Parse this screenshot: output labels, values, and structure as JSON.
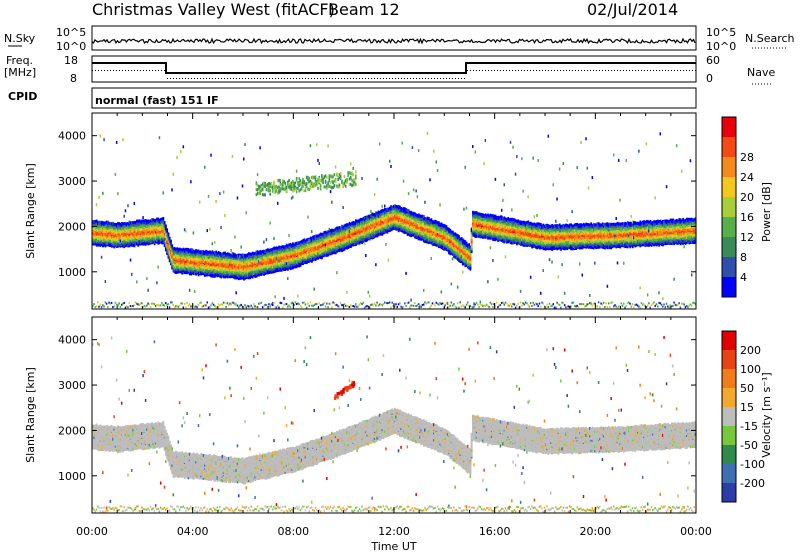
{
  "header": {
    "station": "Christmas Valley West (fitACF)",
    "beam": "Beam 12",
    "date": "02/Jul/2014"
  },
  "side_labels": {
    "nsky": "N.Sky",
    "nsearch": "N.Search",
    "freq_line1": "Freq.",
    "freq_line2": "[MHz]",
    "nave": "Nave",
    "cpid": "CPID",
    "cpid_value": "normal (fast) 151 IF"
  },
  "noise_panel": {
    "left_ticks": [
      "10^5",
      "10^0"
    ],
    "right_ticks": [
      "10^5",
      "10^0"
    ]
  },
  "freq_panel": {
    "left_ticks": [
      "18",
      "8"
    ],
    "right_ticks": [
      "60",
      "0"
    ]
  },
  "colors": {
    "power": [
      "#0000ff",
      "#2f4faf",
      "#3a8b5a",
      "#55b04c",
      "#a6cf3a",
      "#f2c81a",
      "#f48a1a",
      "#f24a10",
      "#e8000b"
    ],
    "velocity": [
      "#2b3ba8",
      "#3f6fb3",
      "#2f8a4c",
      "#78c83c",
      "#bdbdbd",
      "#f2a92c",
      "#f07c1a",
      "#e84412",
      "#e00000"
    ]
  },
  "chart_data": [
    {
      "type": "heatmap",
      "quantity": "power",
      "xlabel": "Time UT",
      "ylabel": "Slant Range [km]",
      "x_ticks": [
        "00:00",
        "04:00",
        "08:00",
        "12:00",
        "16:00",
        "20:00",
        "00:00"
      ],
      "y_ticks": [
        "1000",
        "2000",
        "3000",
        "4000"
      ],
      "xlim_hours": [
        0,
        24
      ],
      "ylim_km": [
        180,
        4500
      ],
      "colorbar": {
        "label": "Power [dB]",
        "ticks": [
          "4",
          "8",
          "12",
          "16",
          "20",
          "24",
          "28"
        ]
      },
      "main_echo_band_km": [
        {
          "hour": 0.0,
          "range": 1900
        },
        {
          "hour": 1.0,
          "range": 1850
        },
        {
          "hour": 2.8,
          "range": 1950
        },
        {
          "hour": 3.2,
          "range": 1300
        },
        {
          "hour": 6.0,
          "range": 1150
        },
        {
          "hour": 8.0,
          "range": 1400
        },
        {
          "hour": 10.0,
          "range": 1800
        },
        {
          "hour": 12.0,
          "range": 2250
        },
        {
          "hour": 14.0,
          "range": 1800
        },
        {
          "hour": 15.0,
          "range": 1350
        },
        {
          "hour": 15.1,
          "range": 2100
        },
        {
          "hour": 18.0,
          "range": 1800
        },
        {
          "hour": 21.0,
          "range": 1850
        },
        {
          "hour": 24.0,
          "range": 1950
        }
      ]
    },
    {
      "type": "heatmap",
      "quantity": "velocity",
      "xlabel": "Time UT",
      "ylabel": "Slant Range [km]",
      "x_ticks": [
        "00:00",
        "04:00",
        "08:00",
        "12:00",
        "16:00",
        "20:00",
        "00:00"
      ],
      "y_ticks": [
        "1000",
        "2000",
        "3000",
        "4000"
      ],
      "xlim_hours": [
        0,
        24
      ],
      "ylim_km": [
        180,
        4500
      ],
      "colorbar": {
        "label": "Velocity [m s⁻¹]",
        "ticks": [
          "200",
          "100",
          "50",
          "15",
          "-15",
          "-50",
          "-100",
          "-200"
        ]
      }
    }
  ]
}
